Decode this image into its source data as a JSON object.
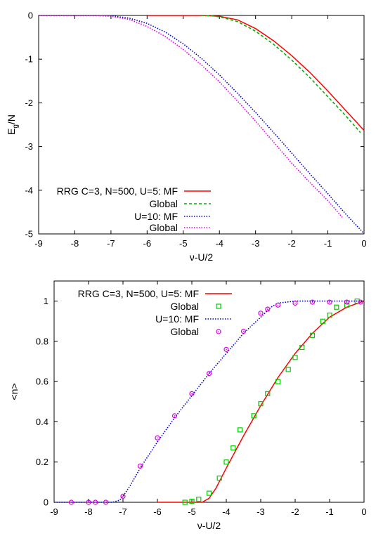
{
  "chart_data": [
    {
      "type": "line",
      "xlabel": "ν-U/2",
      "ylabel_main": "E",
      "ylabel_sub": "g",
      "ylabel_tail": "/N",
      "xlim": [
        -9,
        0
      ],
      "ylim": [
        -5,
        0
      ],
      "xticks": [
        -9,
        -8,
        -7,
        -6,
        -5,
        -4,
        -3,
        -2,
        -1,
        0
      ],
      "yticks": [
        0,
        -1,
        -2,
        -3,
        -4,
        -5
      ],
      "legend_position": "bottom-left",
      "series": [
        {
          "name": "RRG C=3, N=500, U=5: MF",
          "color": "#ff0000",
          "style": "solid",
          "points": [
            [
              -6.0,
              0.0
            ],
            [
              -4.5,
              0.0
            ],
            [
              -4.2,
              -0.01
            ],
            [
              -4.0,
              -0.02
            ],
            [
              -3.5,
              -0.1
            ],
            [
              -3.0,
              -0.3
            ],
            [
              -2.5,
              -0.58
            ],
            [
              -2.0,
              -0.92
            ],
            [
              -1.5,
              -1.3
            ],
            [
              -1.0,
              -1.73
            ],
            [
              -0.5,
              -2.18
            ],
            [
              0.0,
              -2.63
            ]
          ]
        },
        {
          "name": "Global",
          "color": "#00b000",
          "style": "dashed",
          "points": [
            [
              -4.5,
              0.0
            ],
            [
              -4.2,
              -0.01
            ],
            [
              -4.0,
              -0.03
            ],
            [
              -3.5,
              -0.14
            ],
            [
              -3.0,
              -0.36
            ],
            [
              -2.5,
              -0.66
            ],
            [
              -2.0,
              -1.02
            ],
            [
              -1.5,
              -1.42
            ],
            [
              -1.0,
              -1.86
            ],
            [
              -0.5,
              -2.3
            ],
            [
              -0.1,
              -2.68
            ]
          ]
        },
        {
          "name": "U=10: MF",
          "color": "#0000cc",
          "style": "dotted",
          "points": [
            [
              -9.0,
              0.0
            ],
            [
              -7.5,
              0.0
            ],
            [
              -7.0,
              -0.01
            ],
            [
              -6.5,
              -0.06
            ],
            [
              -6.0,
              -0.18
            ],
            [
              -5.5,
              -0.38
            ],
            [
              -5.0,
              -0.65
            ],
            [
              -4.5,
              -0.98
            ],
            [
              -4.0,
              -1.36
            ],
            [
              -3.5,
              -1.78
            ],
            [
              -3.0,
              -2.22
            ],
            [
              -2.5,
              -2.68
            ],
            [
              -2.0,
              -3.15
            ],
            [
              -1.5,
              -3.62
            ],
            [
              -1.0,
              -4.08
            ],
            [
              -0.5,
              -4.55
            ],
            [
              0.0,
              -4.99
            ]
          ]
        },
        {
          "name": "Global",
          "color": "#e000e0",
          "style": "dotted",
          "points": [
            [
              -9.0,
              0.0
            ],
            [
              -7.5,
              0.0
            ],
            [
              -7.0,
              -0.02
            ],
            [
              -6.5,
              -0.09
            ],
            [
              -6.0,
              -0.25
            ],
            [
              -5.5,
              -0.48
            ],
            [
              -5.0,
              -0.78
            ],
            [
              -4.5,
              -1.13
            ],
            [
              -4.0,
              -1.52
            ],
            [
              -3.5,
              -1.96
            ],
            [
              -3.0,
              -2.42
            ],
            [
              -2.5,
              -2.9
            ],
            [
              -2.0,
              -3.38
            ],
            [
              -1.5,
              -3.82
            ],
            [
              -1.0,
              -4.24
            ],
            [
              -0.6,
              -4.62
            ]
          ]
        }
      ]
    },
    {
      "type": "line",
      "xlabel": "ν-U/2",
      "ylabel": "<n>",
      "xlim": [
        -9,
        0
      ],
      "ylim": [
        0,
        1.1
      ],
      "xticks": [
        -9,
        -8,
        -7,
        -6,
        -5,
        -4,
        -3,
        -2,
        -1,
        0
      ],
      "yticks": [
        0,
        0.2,
        0.4,
        0.6,
        0.8,
        1
      ],
      "legend_position": "top-left",
      "series": [
        {
          "name": "RRG C=3, N=500, U=5: MF",
          "color": "#ff0000",
          "style": "solid",
          "marker": "none",
          "points": [
            [
              -6.0,
              0.0
            ],
            [
              -4.7,
              0.0
            ],
            [
              -4.5,
              0.02
            ],
            [
              -4.3,
              0.07
            ],
            [
              -4.0,
              0.17
            ],
            [
              -3.5,
              0.33
            ],
            [
              -3.0,
              0.48
            ],
            [
              -2.5,
              0.62
            ],
            [
              -2.0,
              0.74
            ],
            [
              -1.5,
              0.84
            ],
            [
              -1.0,
              0.92
            ],
            [
              -0.5,
              0.97
            ],
            [
              0.0,
              1.0
            ]
          ]
        },
        {
          "name": "Global",
          "color": "#00cc00",
          "style": "none",
          "marker": "square",
          "points": [
            [
              -5.2,
              0.0
            ],
            [
              -5.0,
              0.005
            ],
            [
              -4.8,
              0.015
            ],
            [
              -4.5,
              0.045
            ],
            [
              -4.2,
              0.12
            ],
            [
              -4.0,
              0.2
            ],
            [
              -3.8,
              0.27
            ],
            [
              -3.6,
              0.36
            ],
            [
              -3.2,
              0.43
            ],
            [
              -3.0,
              0.49
            ],
            [
              -2.8,
              0.54
            ],
            [
              -2.5,
              0.6
            ],
            [
              -2.2,
              0.66
            ],
            [
              -2.0,
              0.72
            ],
            [
              -1.8,
              0.77
            ],
            [
              -1.5,
              0.83
            ],
            [
              -1.2,
              0.9
            ],
            [
              -1.0,
              0.93
            ],
            [
              -0.8,
              0.97
            ],
            [
              -0.5,
              0.98
            ],
            [
              -0.2,
              1.0
            ]
          ]
        },
        {
          "name": "U=10: MF",
          "color": "#0000cc",
          "style": "dotted",
          "marker": "none",
          "points": [
            [
              -9.0,
              0.0
            ],
            [
              -7.3,
              0.0
            ],
            [
              -7.1,
              0.01
            ],
            [
              -7.0,
              0.03
            ],
            [
              -6.8,
              0.08
            ],
            [
              -6.5,
              0.17
            ],
            [
              -6.0,
              0.3
            ],
            [
              -5.5,
              0.42
            ],
            [
              -5.0,
              0.53
            ],
            [
              -4.5,
              0.64
            ],
            [
              -4.0,
              0.74
            ],
            [
              -3.5,
              0.84
            ],
            [
              -3.0,
              0.92
            ],
            [
              -2.7,
              0.97
            ],
            [
              -2.5,
              0.99
            ],
            [
              -2.0,
              1.0
            ],
            [
              0.0,
              1.0
            ]
          ]
        },
        {
          "name": "Global",
          "color": "#e000e0",
          "style": "none",
          "marker": "circle",
          "points": [
            [
              -8.5,
              0.0
            ],
            [
              -8.0,
              0.0
            ],
            [
              -7.8,
              0.0
            ],
            [
              -7.5,
              0.0
            ],
            [
              -7.0,
              0.03
            ],
            [
              -6.5,
              0.18
            ],
            [
              -6.0,
              0.32
            ],
            [
              -5.5,
              0.43
            ],
            [
              -5.0,
              0.54
            ],
            [
              -4.5,
              0.64
            ],
            [
              -4.0,
              0.76
            ],
            [
              -3.5,
              0.85
            ],
            [
              -3.0,
              0.94
            ],
            [
              -2.8,
              0.96
            ],
            [
              -2.5,
              0.98
            ],
            [
              -2.0,
              0.99
            ],
            [
              -1.5,
              0.995
            ],
            [
              -1.0,
              0.995
            ],
            [
              -0.5,
              0.995
            ],
            [
              -0.1,
              0.995
            ]
          ]
        }
      ]
    }
  ]
}
